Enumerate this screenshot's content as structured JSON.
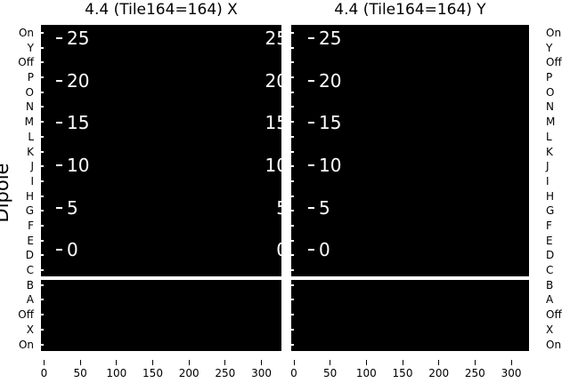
{
  "figure": {
    "titles": [
      "4.4 (Tile164=164) X",
      "4.4 (Tile164=164) Y"
    ],
    "ylabel": "Dipole",
    "colors": {
      "background": "#ffffff",
      "panel_fill": "#000000",
      "text": "#000000",
      "inset_text": "#ffffff"
    }
  },
  "axes": {
    "dipole_labels": [
      "On",
      "Y",
      "Off",
      "P",
      "O",
      "N",
      "M",
      "L",
      "K",
      "J",
      "I",
      "H",
      "G",
      "F",
      "E",
      "D",
      "C",
      "B",
      "A",
      "Off",
      "X",
      "On"
    ],
    "x_tick_labels": [
      "0",
      "50",
      "100",
      "150",
      "200",
      "250",
      "300"
    ],
    "inset_tick_labels": [
      "25",
      "20",
      "15",
      "10",
      "5",
      "0"
    ]
  },
  "chart_data": [
    {
      "type": "heatmap",
      "title": "4.4 (Tile164=164) X",
      "ylabel": "Dipole",
      "y_categories": [
        "On",
        "Y",
        "Off",
        "P",
        "O",
        "N",
        "M",
        "L",
        "K",
        "J",
        "I",
        "H",
        "G",
        "F",
        "E",
        "D",
        "C",
        "B",
        "A",
        "Off",
        "X",
        "On"
      ],
      "x_tick_values": [
        0,
        50,
        100,
        150,
        200,
        250,
        300
      ],
      "x_range_approx": [
        0,
        332
      ],
      "inner_axis_tick_values": [
        25,
        20,
        15,
        10,
        5,
        0
      ],
      "values": "uniform minimum — entire heatmap rendered solid black, no visible data variation",
      "layout_hints": {
        "grid": false,
        "legend": false,
        "split": "horizontal white gap between row C and row B separating upper block (On..C) from lower block (B..On)",
        "inner_tick_labels_left": true,
        "inner_tick_labels_right_clipped": true
      }
    },
    {
      "type": "heatmap",
      "title": "4.4 (Tile164=164) Y",
      "ylabel": "Dipole",
      "y_categories": [
        "On",
        "Y",
        "Off",
        "P",
        "O",
        "N",
        "M",
        "L",
        "K",
        "J",
        "I",
        "H",
        "G",
        "F",
        "E",
        "D",
        "C",
        "B",
        "A",
        "Off",
        "X",
        "On"
      ],
      "x_tick_values": [
        0,
        50,
        100,
        150,
        200,
        250,
        300
      ],
      "x_range_approx": [
        0,
        332
      ],
      "inner_axis_tick_values": [
        25,
        20,
        15,
        10,
        5,
        0
      ],
      "values": "uniform minimum — entire heatmap rendered solid black, no visible data variation",
      "layout_hints": {
        "grid": false,
        "legend": false,
        "split": "horizontal white gap between row C and row B separating upper block (On..C) from lower block (B..On)",
        "inner_tick_labels_left": true,
        "inner_tick_labels_right_clipped": false
      }
    }
  ]
}
